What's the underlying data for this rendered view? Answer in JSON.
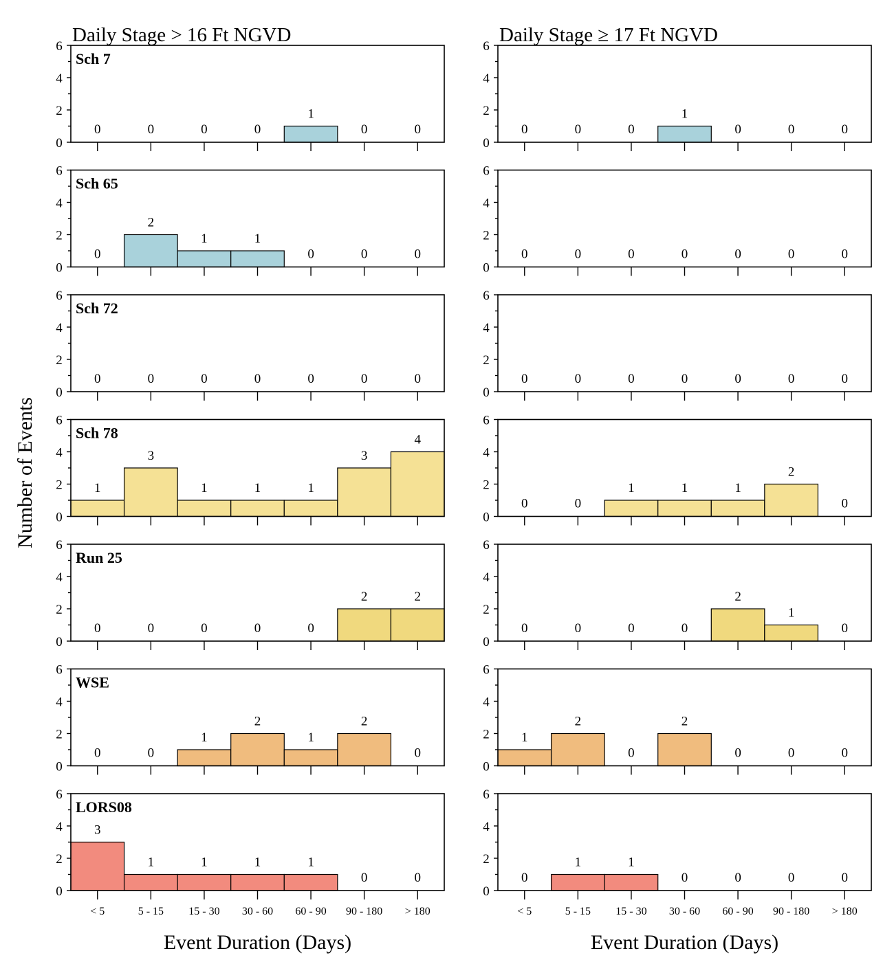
{
  "chart_data": {
    "type": "bar",
    "ylabel": "Number of Events",
    "xlabel": "Event Duration (Days)",
    "categories": [
      "< 5",
      "5 - 15",
      "15 - 30",
      "30 - 60",
      "60 - 90",
      "90 - 180",
      "> 180"
    ],
    "ylim": [
      0,
      6
    ],
    "yticks": [
      0,
      2,
      4,
      6
    ],
    "columns": [
      {
        "title": "Daily Stage > 16 Ft NGVD"
      },
      {
        "title": "Daily Stage ≥ 17 Ft NGVD"
      }
    ],
    "rows": [
      {
        "label": "Sch 7",
        "color": "#a9d2db",
        "left": [
          0,
          0,
          0,
          0,
          1,
          0,
          0
        ],
        "right": [
          0,
          0,
          0,
          1,
          0,
          0,
          0
        ]
      },
      {
        "label": "Sch 65",
        "color": "#a9d2db",
        "left": [
          0,
          2,
          1,
          1,
          0,
          0,
          0
        ],
        "right": [
          0,
          0,
          0,
          0,
          0,
          0,
          0
        ]
      },
      {
        "label": "Sch 72",
        "color": "#a9d2db",
        "left": [
          0,
          0,
          0,
          0,
          0,
          0,
          0
        ],
        "right": [
          0,
          0,
          0,
          0,
          0,
          0,
          0
        ]
      },
      {
        "label": "Sch 78",
        "color": "#f5e195",
        "left": [
          1,
          3,
          1,
          1,
          1,
          3,
          4
        ],
        "right": [
          0,
          0,
          1,
          1,
          1,
          2,
          0
        ]
      },
      {
        "label": "Run 25",
        "color": "#f0d97e",
        "left": [
          0,
          0,
          0,
          0,
          0,
          2,
          2
        ],
        "right": [
          0,
          0,
          0,
          0,
          2,
          1,
          0
        ]
      },
      {
        "label": "WSE",
        "color": "#f0bc7e",
        "left": [
          0,
          0,
          1,
          2,
          1,
          2,
          0
        ],
        "right": [
          1,
          2,
          0,
          2,
          0,
          0,
          0
        ]
      },
      {
        "label": "LORS08",
        "color": "#f28b7e",
        "left": [
          3,
          1,
          1,
          1,
          1,
          0,
          0
        ],
        "right": [
          0,
          1,
          1,
          0,
          0,
          0,
          0
        ]
      }
    ]
  }
}
